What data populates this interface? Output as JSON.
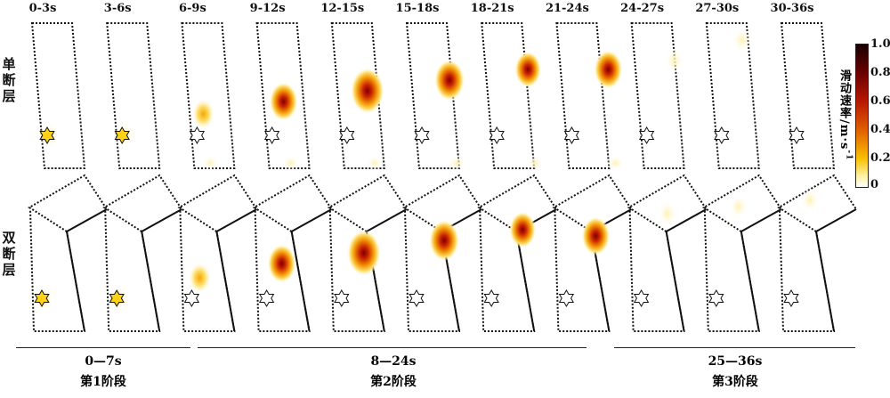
{
  "time_labels": [
    "0-3s",
    "3-6s",
    "6-9s",
    "9-12s",
    "12-15s",
    "15-18s",
    "18-21s",
    "21-24s",
    "24-27s",
    "27-30s",
    "30-36s"
  ],
  "rows": {
    "single": {
      "label_chars": [
        "单",
        "断",
        "层"
      ]
    },
    "double": {
      "label_chars": [
        "双",
        "断",
        "层"
      ]
    }
  },
  "colorbar": {
    "title": "滑动速率/m·s",
    "title_sup": "-1",
    "ticks": [
      "1.0",
      "0.8",
      "0.6",
      "0.4",
      "0.2",
      "0"
    ],
    "colors": [
      "#1a0000",
      "#5a0000",
      "#a01000",
      "#d84a00",
      "#f0a000",
      "#ffe060",
      "#ffffff"
    ]
  },
  "stages": [
    {
      "time": "0—7s",
      "name": "第1阶段"
    },
    {
      "time": "8—24s",
      "name": "第2阶段"
    },
    {
      "time": "25—36s",
      "name": "第3阶段"
    }
  ],
  "slip": {
    "single": [
      0.25,
      0.3,
      0.4,
      0.7,
      1.0,
      0.8,
      0.6,
      0.7,
      0.2,
      0.15,
      0.0
    ],
    "double": [
      0.25,
      0.3,
      0.4,
      0.7,
      1.0,
      0.8,
      0.6,
      0.7,
      0.2,
      0.15,
      0.1
    ]
  }
}
